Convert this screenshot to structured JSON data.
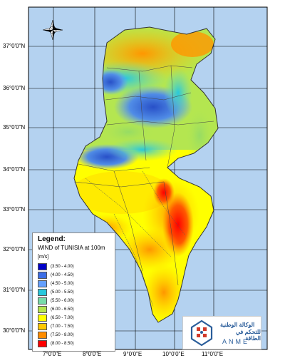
{
  "legend": {
    "title": "Legend:",
    "subtitle": "WIND of TUNISIA at 100m",
    "unit": "[m/s]",
    "items": [
      {
        "label": "(3.50 - 4.00)",
        "color": "#0000c8"
      },
      {
        "label": "(4.00 - 4.50)",
        "color": "#3c6ee6"
      },
      {
        "label": "(4.50 - 5.00)",
        "color": "#64a0ff"
      },
      {
        "label": "(5.00 - 5.50)",
        "color": "#28c8dc"
      },
      {
        "label": "(5.50 - 6.00)",
        "color": "#78dcaa"
      },
      {
        "label": "(6.00 - 6.50)",
        "color": "#b4e650"
      },
      {
        "label": "(6.50 - 7.00)",
        "color": "#ffff00"
      },
      {
        "label": "(7.00 - 7.50)",
        "color": "#ffc800"
      },
      {
        "label": "(7.50 - 8.00)",
        "color": "#ff8c00"
      },
      {
        "label": "(8.00 - 8.50)",
        "color": "#ff0000"
      }
    ]
  },
  "axes": {
    "lat_labels": [
      "37°0'0\"N",
      "36°0'0\"N",
      "35°0'0\"N",
      "34°0'0\"N",
      "33°0'0\"N",
      "32°0'0\"N",
      "31°0'0\"N",
      "30°0'0\"N"
    ],
    "lon_labels": [
      "7°0'0\"E",
      "8°0'0\"E",
      "9°0'0\"E",
      "10°0'0\"E",
      "11°0'0\"E"
    ]
  },
  "logo": {
    "arabic_line1": "الوكالة الوطنية",
    "arabic_line2": "للتحكم في الطاقة",
    "name": "ANME"
  },
  "colors": {
    "sea": "#b4d2f0",
    "grid": "#000000"
  }
}
